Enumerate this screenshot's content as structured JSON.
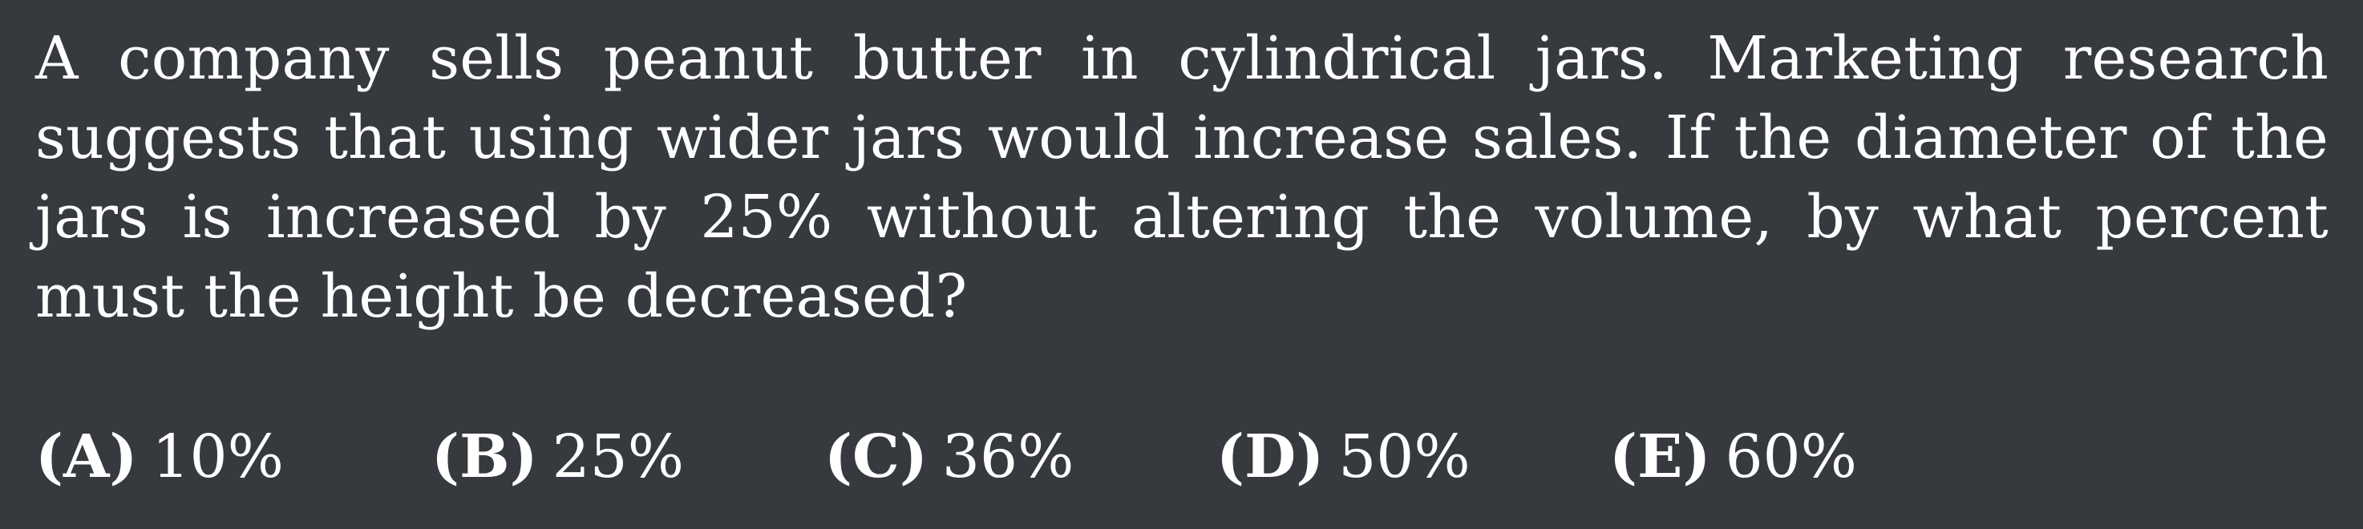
{
  "question": {
    "text": "A company sells peanut butter in cylindrical jars. Marketing research suggests that using wider jars would increase sales.  If the diameter of the jars is increased by 25% without altering the volume, by what percent must the height be decreased?"
  },
  "choices": [
    {
      "letter": "(A)",
      "value": "10%"
    },
    {
      "letter": "(B)",
      "value": "25%"
    },
    {
      "letter": "(C)",
      "value": "36%"
    },
    {
      "letter": "(D)",
      "value": "50%"
    },
    {
      "letter": "(E)",
      "value": "60%"
    }
  ]
}
